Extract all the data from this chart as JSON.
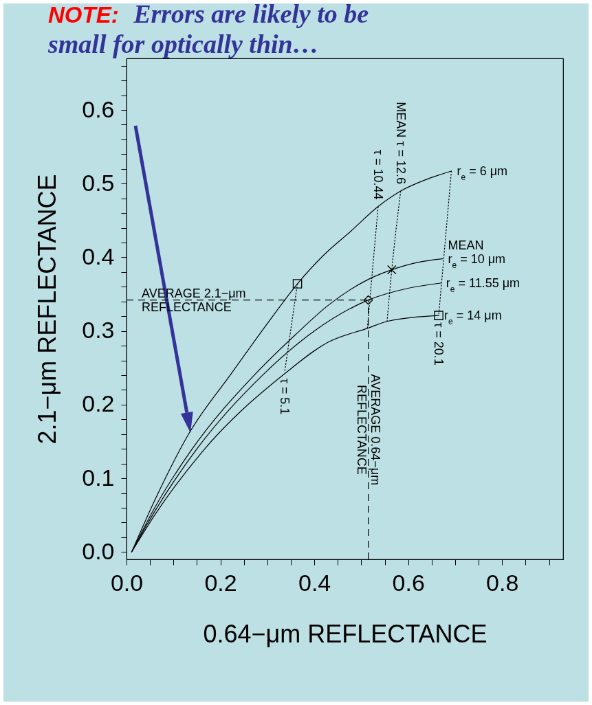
{
  "chart_data": {
    "type": "line",
    "xlabel": "0.64−μm REFLECTANCE",
    "ylabel": "2.1−μm REFLECTANCE",
    "annotations": [
      "NOTE:",
      "Errors are likely to be small for optically thin…"
    ],
    "xlim": [
      0,
      0.93
    ],
    "ylim": [
      -0.01,
      0.67
    ],
    "xticks": [
      {
        "value": 0,
        "label": "0.0"
      },
      {
        "value": 0.05,
        "label": null
      },
      {
        "value": 0.1,
        "label": null
      },
      {
        "value": 0.15,
        "label": null
      },
      0.2,
      {
        "value": 0.25,
        "label": null
      },
      {
        "value": 0.3,
        "label": null
      },
      {
        "value": 0.35,
        "label": null
      },
      0.4,
      {
        "value": 0.45,
        "label": null
      },
      {
        "value": 0.5,
        "label": null
      },
      {
        "value": 0.55,
        "label": null
      },
      0.6,
      {
        "value": 0.65,
        "label": null
      },
      {
        "value": 0.7,
        "label": null
      },
      {
        "value": 0.75,
        "label": null
      },
      0.8,
      {
        "value": 0.85,
        "label": null
      },
      {
        "value": 0.9,
        "label": null
      }
    ],
    "yticks": [
      {
        "value": 0,
        "label": "0.0"
      },
      {
        "value": 0.02,
        "label": null
      },
      {
        "value": 0.04,
        "label": null
      },
      {
        "value": 0.06,
        "label": null
      },
      {
        "value": 0.08,
        "label": null
      },
      0.1,
      {
        "value": 0.12,
        "label": null
      },
      {
        "value": 0.14,
        "label": null
      },
      {
        "value": 0.16,
        "label": null
      },
      {
        "value": 0.18,
        "label": null
      },
      0.2,
      {
        "value": 0.22,
        "label": null
      },
      {
        "value": 0.24,
        "label": null
      },
      {
        "value": 0.26,
        "label": null
      },
      {
        "value": 0.28,
        "label": null
      },
      0.3,
      {
        "value": 0.32,
        "label": null
      },
      {
        "value": 0.34,
        "label": null
      },
      {
        "value": 0.36,
        "label": null
      },
      {
        "value": 0.38,
        "label": null
      },
      0.4,
      {
        "value": 0.42,
        "label": null
      },
      {
        "value": 0.44,
        "label": null
      },
      {
        "value": 0.46,
        "label": null
      },
      {
        "value": 0.48,
        "label": null
      },
      0.5,
      {
        "value": 0.52,
        "label": null
      },
      {
        "value": 0.54,
        "label": null
      },
      {
        "value": 0.56,
        "label": null
      },
      {
        "value": 0.58,
        "label": null
      },
      0.6,
      {
        "value": 0.62,
        "label": null
      },
      {
        "value": 0.64,
        "label": null
      },
      {
        "value": 0.66,
        "label": null
      }
    ],
    "series": [
      {
        "name": "r$_{e}$ = 6 μm",
        "color": "#000000",
        "line_style": "solid",
        "x": [
          0.011,
          0.06,
          0.135,
          0.223,
          0.3,
          0.364,
          0.42,
          0.477,
          0.536,
          0.584,
          0.64,
          0.692
        ],
        "values": [
          0,
          0.07,
          0.163,
          0.242,
          0.31,
          0.364,
          0.403,
          0.435,
          0.469,
          0.49,
          0.506,
          0.517
        ]
      },
      {
        "name": "MEAN\nr$_{e}$ = 10 μm",
        "color": "#000000",
        "line_style": "solid",
        "x": [
          0.011,
          0.06,
          0.14,
          0.275,
          0.36,
          0.43,
          0.515,
          0.565,
          0.62,
          0.673
        ],
        "values": [
          0,
          0.06,
          0.14,
          0.242,
          0.295,
          0.335,
          0.37,
          0.383,
          0.393,
          0.398
        ]
      },
      {
        "name": "r$_{e}$ = 11.55 μm",
        "color": "#000000",
        "line_style": "solid",
        "x": [
          0.011,
          0.06,
          0.15,
          0.293,
          0.4,
          0.515,
          0.6,
          0.669
        ],
        "values": [
          0,
          0.055,
          0.14,
          0.242,
          0.3,
          0.342,
          0.358,
          0.365
        ]
      },
      {
        "name": "r$_{e}$ = 14 μm",
        "color": "#000000",
        "line_style": "solid",
        "x": [
          0.011,
          0.06,
          0.16,
          0.337,
          0.43,
          0.515,
          0.555,
          0.665
        ],
        "values": [
          0,
          0.05,
          0.135,
          0.242,
          0.285,
          0.304,
          0.313,
          0.321
        ]
      },
      {
        "name": "τ = 5.1",
        "color": "#000000",
        "line_style": "dotted",
        "x": [
          0.364,
          0.337
        ],
        "values": [
          0.364,
          0.245
        ]
      },
      {
        "name": "τ = 10.44",
        "color": "#000000",
        "line_style": "dotted",
        "x": [
          0.513,
          0.536
        ],
        "values": [
          0.304,
          0.469
        ]
      },
      {
        "name": "MEAN τ = 12.6",
        "color": "#000000",
        "line_style": "dotted",
        "x": [
          0.555,
          0.565,
          0.584
        ],
        "values": [
          0.313,
          0.383,
          0.49
        ]
      },
      {
        "name": "τ = 20.1",
        "color": "#000000",
        "line_style": "dotted",
        "x": [
          0.692,
          0.665
        ],
        "values": [
          0.517,
          0.321
        ]
      },
      {
        "type": "scatter",
        "marker": "square",
        "color": "#000000",
        "x": [
          0.364,
          0.665
        ],
        "values": [
          0.364,
          0.321
        ]
      },
      {
        "type": "scatter",
        "marker": "cross",
        "color": "#000000",
        "x": [
          0.565
        ],
        "values": [
          0.383
        ]
      },
      {
        "type": "scatter",
        "marker": "diamond",
        "color": "#000000",
        "x": [
          0.515
        ],
        "values": [
          0.342
        ]
      }
    ],
    "ref_lines": [
      {
        "axis": "y",
        "value": 0.342,
        "label": "AVERAGE 2.1−μm\nREFLECTANCE",
        "line_style": "dashed"
      },
      {
        "axis": "x",
        "value": 0.515,
        "label": "AVERAGE 0.64−μm\nREFLECTANCE",
        "line_style": "dashed"
      }
    ]
  }
}
